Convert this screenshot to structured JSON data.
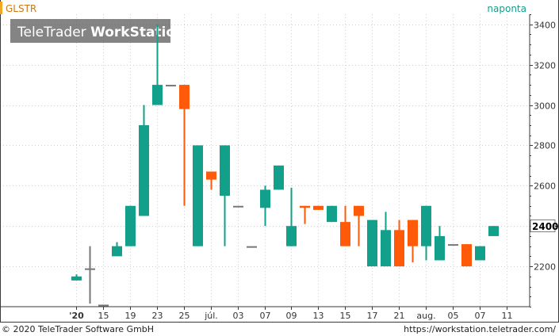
{
  "header": {
    "ticker": "GLSTR",
    "period": "naponta",
    "watermark_regular": "TeleTrader ",
    "watermark_bold": "WorkStation"
  },
  "footer": {
    "copyright": "© 2020 TeleTrader Software GmbH",
    "url": "https://workstation.teletrader.com/"
  },
  "colors": {
    "up": "#12a08a",
    "down": "#ff5a0a",
    "doji": "#777777",
    "grid": "#d0d0d0",
    "ticker_marker": "#f5a623",
    "axis": "#3a3a3a",
    "last_price_line": "#1a3a8a"
  },
  "chart_data": {
    "type": "candlestick",
    "title": "",
    "xlabel": "",
    "ylabel": "",
    "ylim": [
      2000,
      3450
    ],
    "y_ticks": [
      2200,
      2400,
      2600,
      2800,
      3000,
      3200,
      3400
    ],
    "x_ticks": [
      {
        "label": "'20",
        "bold": true
      },
      {
        "label": "15"
      },
      {
        "label": "19"
      },
      {
        "label": "23"
      },
      {
        "label": "25"
      },
      {
        "label": "júl."
      },
      {
        "label": "03"
      },
      {
        "label": "07"
      },
      {
        "label": "09"
      },
      {
        "label": "13"
      },
      {
        "label": "15"
      },
      {
        "label": "17"
      },
      {
        "label": "21"
      },
      {
        "label": "aug."
      },
      {
        "label": "05"
      },
      {
        "label": "07"
      },
      {
        "label": "11"
      }
    ],
    "last_price": "2400",
    "last_value": 2400,
    "candles": [
      {
        "open": 2130,
        "high": 2160,
        "low": 2130,
        "close": 2150
      },
      {
        "open": 2190,
        "high": 2300,
        "low": 2015,
        "close": 2190
      },
      {
        "open": 2010,
        "high": 2010,
        "low": 2010,
        "close": 2010
      },
      {
        "open": 2250,
        "high": 2320,
        "low": 2250,
        "close": 2300
      },
      {
        "open": 2300,
        "high": 2500,
        "low": 2300,
        "close": 2500
      },
      {
        "open": 2450,
        "high": 3000,
        "low": 2450,
        "close": 2900
      },
      {
        "open": 3000,
        "high": 3400,
        "low": 3000,
        "close": 3100
      },
      {
        "open": 3100,
        "high": 3100,
        "low": 3100,
        "close": 3100
      },
      {
        "open": 3100,
        "high": 3100,
        "low": 2500,
        "close": 2980
      },
      {
        "open": 2300,
        "high": 2800,
        "low": 2300,
        "close": 2800
      },
      {
        "open": 2670,
        "high": 2670,
        "low": 2580,
        "close": 2630
      },
      {
        "open": 2550,
        "high": 2800,
        "low": 2300,
        "close": 2800
      },
      {
        "open": 2500,
        "high": 2500,
        "low": 2500,
        "close": 2500
      },
      {
        "open": 2300,
        "high": 2300,
        "low": 2300,
        "close": 2300
      },
      {
        "open": 2490,
        "high": 2600,
        "low": 2400,
        "close": 2580
      },
      {
        "open": 2580,
        "high": 2700,
        "low": 2580,
        "close": 2700
      },
      {
        "open": 2300,
        "high": 2590,
        "low": 2300,
        "close": 2400
      },
      {
        "open": 2500,
        "high": 2500,
        "low": 2410,
        "close": 2490
      },
      {
        "open": 2500,
        "high": 2500,
        "low": 2480,
        "close": 2480
      },
      {
        "open": 2420,
        "high": 2500,
        "low": 2420,
        "close": 2500
      },
      {
        "open": 2420,
        "high": 2500,
        "low": 2300,
        "close": 2300
      },
      {
        "open": 2500,
        "high": 2500,
        "low": 2300,
        "close": 2450
      },
      {
        "open": 2200,
        "high": 2430,
        "low": 2200,
        "close": 2430
      },
      {
        "open": 2200,
        "high": 2470,
        "low": 2200,
        "close": 2380
      },
      {
        "open": 2380,
        "high": 2430,
        "low": 2200,
        "close": 2200
      },
      {
        "open": 2430,
        "high": 2430,
        "low": 2220,
        "close": 2300
      },
      {
        "open": 2300,
        "high": 2500,
        "low": 2230,
        "close": 2500
      },
      {
        "open": 2230,
        "high": 2400,
        "low": 2230,
        "close": 2350
      },
      {
        "open": 2310,
        "high": 2310,
        "low": 2310,
        "close": 2310
      },
      {
        "open": 2310,
        "high": 2310,
        "low": 2200,
        "close": 2200
      },
      {
        "open": 2230,
        "high": 2300,
        "low": 2230,
        "close": 2300
      },
      {
        "open": 2350,
        "high": 2400,
        "low": 2350,
        "close": 2400
      }
    ]
  }
}
